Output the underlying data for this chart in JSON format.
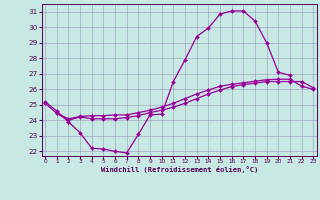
{
  "xlabel": "Windchill (Refroidissement éolien,°C)",
  "bg_color": "#c8e8e4",
  "grid_color": "#9999bb",
  "line_color": "#990099",
  "text_color": "#550055",
  "ylim_min": 21.7,
  "ylim_max": 31.5,
  "yticks": [
    22,
    23,
    24,
    25,
    26,
    27,
    28,
    29,
    30,
    31
  ],
  "line1_x": [
    0,
    1,
    2,
    3,
    4,
    5,
    6,
    7,
    8,
    9,
    10,
    11,
    12,
    13,
    14,
    15,
    16,
    17,
    18,
    19,
    20,
    21
  ],
  "line1_y": [
    25.2,
    24.6,
    23.9,
    23.2,
    22.2,
    22.15,
    22.0,
    21.9,
    23.1,
    24.35,
    24.4,
    26.5,
    27.9,
    29.4,
    29.95,
    30.85,
    31.05,
    31.05,
    30.4,
    29.0,
    27.1,
    26.9
  ],
  "line2_x": [
    0,
    1,
    2,
    3,
    4,
    5,
    6,
    7,
    8,
    9,
    10,
    11,
    12,
    13,
    14,
    15,
    16,
    17,
    18,
    19,
    20,
    21,
    22,
    23
  ],
  "line2_y": [
    25.1,
    24.45,
    24.1,
    24.25,
    24.3,
    24.3,
    24.35,
    24.35,
    24.5,
    24.65,
    24.85,
    25.1,
    25.4,
    25.7,
    25.95,
    26.2,
    26.32,
    26.42,
    26.52,
    26.62,
    26.65,
    26.65,
    26.2,
    26.0
  ],
  "line3_x": [
    1,
    2,
    3,
    4,
    5,
    6,
    7,
    8,
    9,
    10,
    11,
    12,
    13,
    14,
    15,
    16,
    17,
    18,
    19,
    20,
    21,
    22,
    23
  ],
  "line3_y": [
    24.45,
    24.0,
    24.22,
    24.1,
    24.1,
    24.1,
    24.18,
    24.3,
    24.5,
    24.65,
    24.85,
    25.1,
    25.4,
    25.7,
    25.95,
    26.18,
    26.3,
    26.4,
    26.5,
    26.5,
    26.5,
    26.5,
    26.1
  ]
}
